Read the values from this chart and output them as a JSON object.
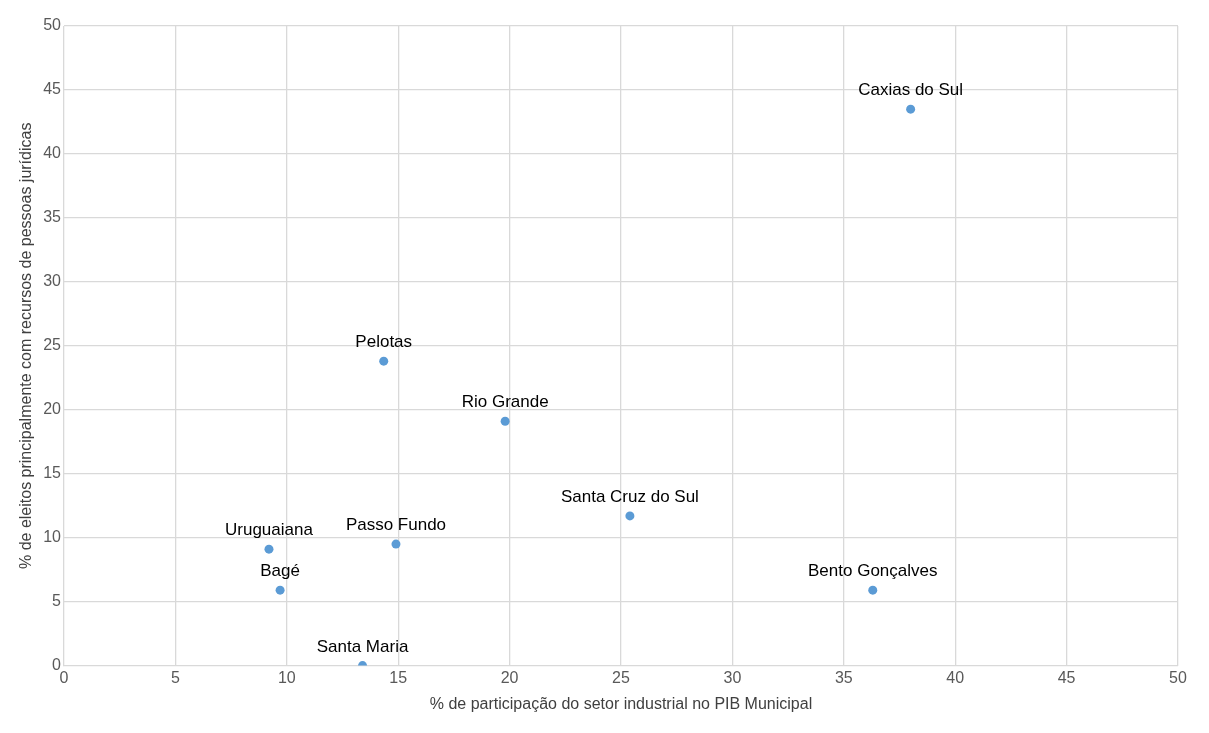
{
  "chart_data": {
    "type": "scatter",
    "xlabel": "% de participação do setor industrial no PIB Municipal",
    "ylabel": "% de eleitos principalmente com recursos de pessoas jurídicas",
    "series": [
      {
        "color": "#5b9bd5",
        "x": [
          38.0,
          14.35,
          19.8,
          25.4,
          36.3,
          9.2,
          14.9,
          9.7,
          13.4
        ],
        "values": [
          43.5,
          23.8,
          19.1,
          11.7,
          5.9,
          9.1,
          9.5,
          5.9,
          0
        ]
      }
    ],
    "annotations": [
      {
        "text": "Caxias do Sul",
        "x": 38.0,
        "y": 43.5
      },
      {
        "text": "Pelotas",
        "x": 14.35,
        "y": 23.8
      },
      {
        "text": "Rio Grande",
        "x": 19.8,
        "y": 19.1
      },
      {
        "text": "Santa Cruz do Sul",
        "x": 25.4,
        "y": 11.7
      },
      {
        "text": "Bento Gonçalves",
        "x": 36.3,
        "y": 5.9
      },
      {
        "text": "Uruguaiana",
        "x": 9.2,
        "y": 9.1
      },
      {
        "text": "Passo Fundo",
        "x": 14.9,
        "y": 9.5
      },
      {
        "text": "Bagé",
        "x": 9.7,
        "y": 5.9
      },
      {
        "text": "Santa Maria",
        "x": 13.4,
        "y": 0
      }
    ],
    "xlim": [
      0,
      50
    ],
    "xticks": [
      0,
      5,
      10,
      15,
      20,
      25,
      30,
      35,
      40,
      45,
      50
    ],
    "ylim": [
      0,
      50
    ],
    "yticks": [
      0,
      5,
      10,
      15,
      20,
      25,
      30,
      35,
      40,
      45,
      50
    ],
    "grid": true,
    "marker": "circle"
  }
}
